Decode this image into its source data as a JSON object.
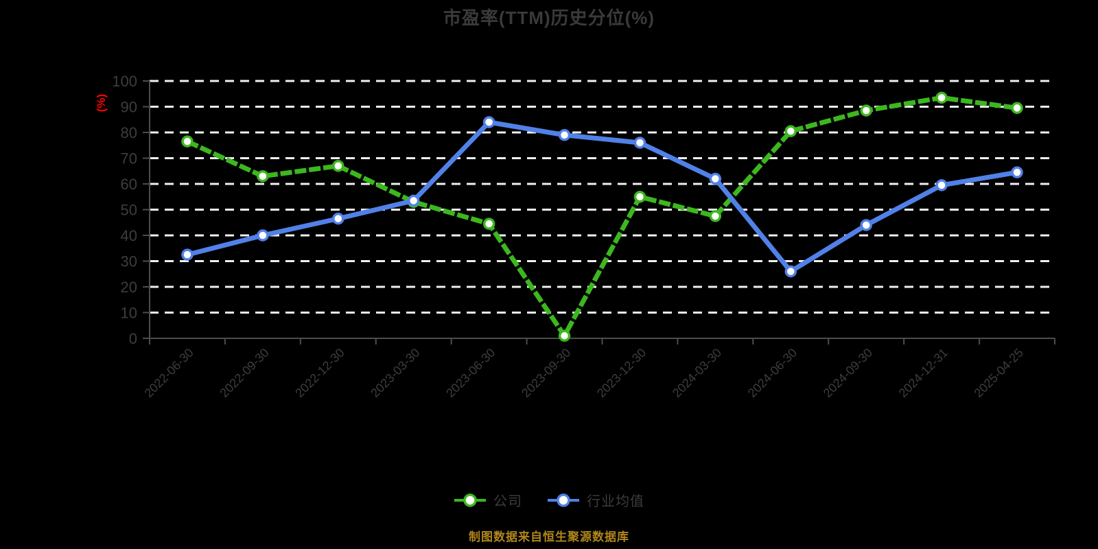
{
  "title": "市盈率(TTM)历史分位(%)",
  "y_axis": {
    "unit_label": "(%)",
    "ticks": [
      0,
      10,
      20,
      30,
      40,
      50,
      60,
      70,
      80,
      90,
      100
    ]
  },
  "chart_data": {
    "type": "line",
    "title": "市盈率(TTM)历史分位(%)",
    "ylabel": "(%)",
    "ylim": [
      0,
      100
    ],
    "grid": true,
    "legend_position": "bottom",
    "categories": [
      "2022-06-30",
      "2022-09-30",
      "2022-12-30",
      "2023-03-30",
      "2023-06-30",
      "2023-09-30",
      "2023-12-30",
      "2024-03-30",
      "2024-06-30",
      "2024-09-30",
      "2024-12-31",
      "2025-04-25"
    ],
    "series": [
      {
        "name": "公司",
        "color": "#3CB81E",
        "line_style": "dashed",
        "values": [
          76.5,
          63,
          67,
          53,
          44.5,
          1,
          55,
          47.5,
          80.5,
          88.5,
          93.5,
          89.5
        ]
      },
      {
        "name": "行业均值",
        "color": "#5181E8",
        "line_style": "solid",
        "values": [
          32.5,
          40,
          46.5,
          53.5,
          84,
          79,
          76,
          62,
          26,
          44,
          59.5,
          64.5
        ]
      }
    ]
  },
  "legend": {
    "items": [
      {
        "label": "公司",
        "color": "#3CB81E"
      },
      {
        "label": "行业均值",
        "color": "#5181E8"
      }
    ]
  },
  "footer": {
    "caption": "制图数据来自恒生聚源数据库"
  },
  "colors": {
    "background": "#000000",
    "title_text": "#3A3A3A",
    "axis_line": "#4D4D4D",
    "tick_text": "#3D3D3D",
    "gridline": "#F0F0F0",
    "unit_label": "#FF0000",
    "caption": "#B0861B",
    "marker_fill": "#FFFFFF"
  }
}
